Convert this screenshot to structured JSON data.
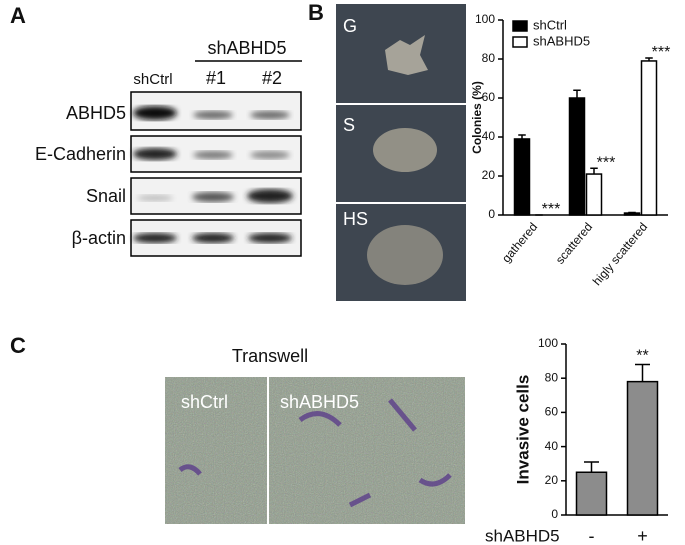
{
  "panels": {
    "a": {
      "label": "A",
      "group_label": "shABHD5",
      "lanes": [
        "shCtrl",
        "#1",
        "#2"
      ],
      "rows": [
        "ABHD5",
        "E-Cadherin",
        "Snail",
        "β-actin"
      ]
    },
    "b": {
      "label": "B",
      "images": [
        "G",
        "S",
        "HS"
      ]
    },
    "c": {
      "label": "C",
      "title": "Transwell",
      "images": [
        "shCtrl",
        "shABHD5"
      ]
    }
  },
  "chart_data": [
    {
      "type": "bar",
      "ylabel": "Colonies (%)",
      "categories": [
        "gathered",
        "scattered",
        "higly scattered"
      ],
      "series": [
        {
          "name": "shCtrl",
          "color": "#000000",
          "values": [
            39,
            60,
            1
          ],
          "errors": [
            2,
            4,
            0.3
          ]
        },
        {
          "name": "shABHD5",
          "color": "#ffffff",
          "values": [
            0,
            21,
            79
          ],
          "errors": [
            0,
            3,
            1.5
          ],
          "annotations": [
            "***",
            "***",
            "***"
          ]
        }
      ],
      "ylim": [
        0,
        100
      ],
      "yticks": [
        0,
        20,
        40,
        60,
        80,
        100
      ],
      "legend": "top-left"
    },
    {
      "type": "bar",
      "ylabel": "Invasive cells",
      "xlabel": "shABHD5",
      "categories": [
        "-",
        "+"
      ],
      "values": [
        25,
        78
      ],
      "errors": [
        6,
        10
      ],
      "annotations": [
        null,
        "**"
      ],
      "color": "#8c8c8c",
      "ylim": [
        0,
        100
      ],
      "yticks": [
        0,
        20,
        40,
        60,
        80,
        100
      ]
    }
  ]
}
